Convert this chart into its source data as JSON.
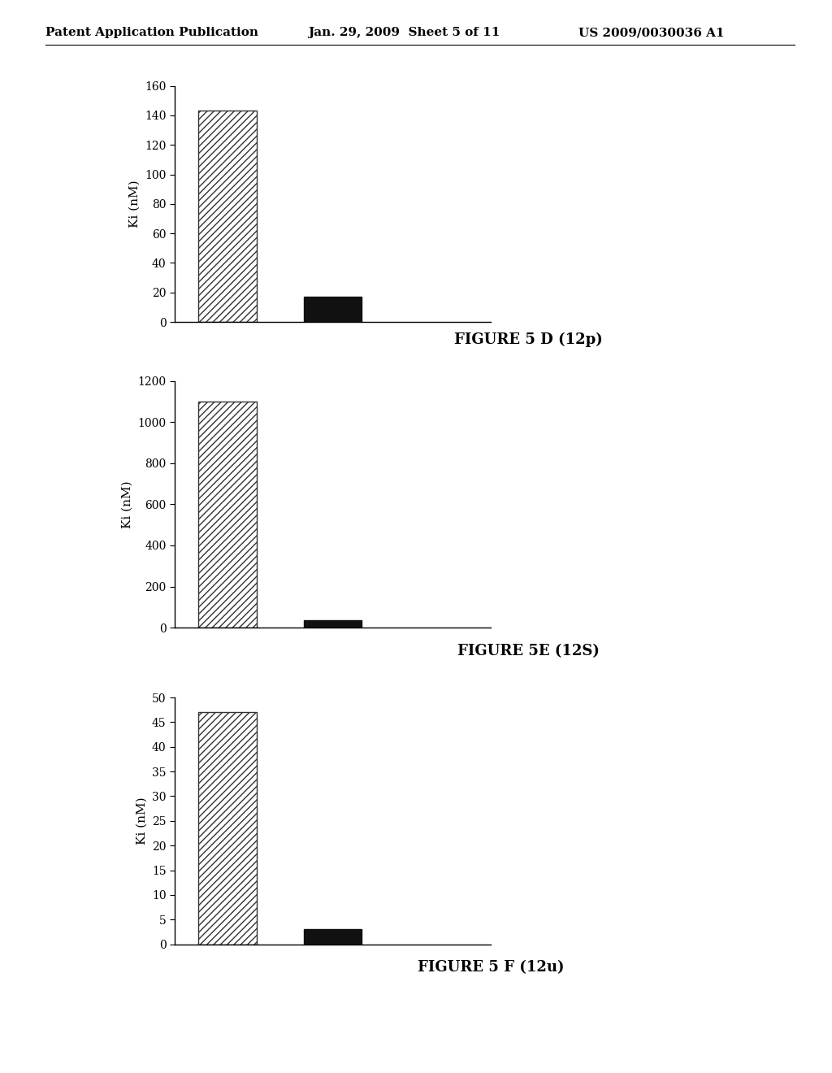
{
  "header_left": "Patent Application Publication",
  "header_mid": "Jan. 29, 2009  Sheet 5 of 11",
  "header_right": "US 2009/0030036 A1",
  "charts": [
    {
      "title": "FIGURE 5 D (12p)",
      "ylabel": "Ki (nM)",
      "bar1_value": 143,
      "bar2_value": 17,
      "ylim": [
        0,
        160
      ],
      "yticks": [
        0,
        20,
        40,
        60,
        80,
        100,
        120,
        140,
        160
      ]
    },
    {
      "title": "FIGURE 5E (12S)",
      "ylabel": "Ki (nM)",
      "bar1_value": 1100,
      "bar2_value": 35,
      "ylim": [
        0,
        1200
      ],
      "yticks": [
        0,
        200,
        400,
        600,
        800,
        1000,
        1200
      ]
    },
    {
      "title": "FIGURE 5 F (12u)",
      "ylabel": "Ki (nM)",
      "bar1_value": 47,
      "bar2_value": 3,
      "ylim": [
        0,
        50
      ],
      "yticks": [
        0,
        5,
        10,
        15,
        20,
        25,
        30,
        35,
        40,
        45,
        50
      ]
    }
  ],
  "hatch_pattern": "////",
  "bar2_color": "#111111",
  "bar_width": 0.55,
  "background_color": "#ffffff",
  "text_color": "#000000",
  "header_fontsize": 11,
  "axis_fontsize": 10,
  "title_fontsize": 13,
  "ylabel_fontsize": 11
}
